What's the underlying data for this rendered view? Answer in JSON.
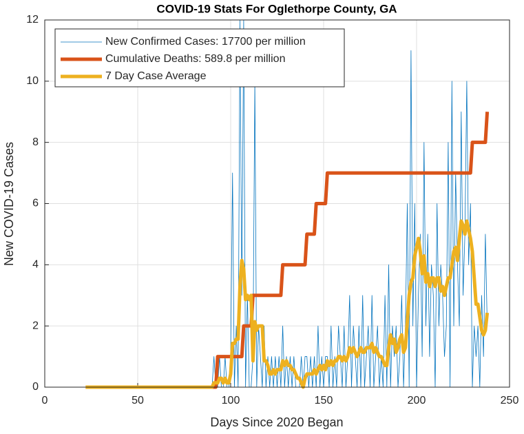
{
  "chart_data": {
    "type": "line",
    "title": "COVID-19 Stats For Oglethorpe County, GA",
    "xlabel": "Days Since 2020 Began",
    "ylabel": "New COVID-19 Cases",
    "xlim": [
      0,
      250
    ],
    "xticks": [
      0,
      50,
      100,
      150,
      200,
      250
    ],
    "ylim": [
      0,
      12
    ],
    "yticks": [
      0,
      2,
      4,
      6,
      8,
      10,
      12
    ],
    "grid": true,
    "legend": "upper left",
    "x": [
      22,
      23,
      24,
      25,
      26,
      27,
      28,
      29,
      30,
      31,
      32,
      33,
      34,
      35,
      36,
      37,
      38,
      39,
      40,
      41,
      42,
      43,
      44,
      45,
      46,
      47,
      48,
      49,
      50,
      51,
      52,
      53,
      54,
      55,
      56,
      57,
      58,
      59,
      60,
      61,
      62,
      63,
      64,
      65,
      66,
      67,
      68,
      69,
      70,
      71,
      72,
      73,
      74,
      75,
      76,
      77,
      78,
      79,
      80,
      81,
      82,
      83,
      84,
      85,
      86,
      87,
      88,
      89,
      90,
      91,
      92,
      93,
      94,
      95,
      96,
      97,
      98,
      99,
      100,
      101,
      102,
      103,
      104,
      105,
      106,
      107,
      108,
      109,
      110,
      111,
      112,
      113,
      114,
      115,
      116,
      117,
      118,
      119,
      120,
      121,
      122,
      123,
      124,
      125,
      126,
      127,
      128,
      129,
      130,
      131,
      132,
      133,
      134,
      135,
      136,
      137,
      138,
      139,
      140,
      141,
      142,
      143,
      144,
      145,
      146,
      147,
      148,
      149,
      150,
      151,
      152,
      153,
      154,
      155,
      156,
      157,
      158,
      159,
      160,
      161,
      162,
      163,
      164,
      165,
      166,
      167,
      168,
      169,
      170,
      171,
      172,
      173,
      174,
      175,
      176,
      177,
      178,
      179,
      180,
      181,
      182,
      183,
      184,
      185,
      186,
      187,
      188,
      189,
      190,
      191,
      192,
      193,
      194,
      195,
      196,
      197,
      198,
      199,
      200,
      201,
      202,
      203,
      204,
      205,
      206,
      207,
      208,
      209,
      210,
      211,
      212,
      213,
      214,
      215,
      216,
      217,
      218,
      219,
      220,
      221,
      222,
      223,
      224,
      225,
      226,
      227,
      228,
      229,
      230,
      231,
      232,
      233,
      234,
      235,
      236,
      237,
      238
    ],
    "series": [
      {
        "name": "New Confirmed Cases: 17700 per million",
        "color": "#0072BD",
        "width": 0.8,
        "values": [
          0,
          0,
          0,
          0,
          0,
          0,
          0,
          0,
          0,
          0,
          0,
          0,
          0,
          0,
          0,
          0,
          0,
          0,
          0,
          0,
          0,
          0,
          0,
          0,
          0,
          0,
          0,
          0,
          0,
          0,
          0,
          0,
          0,
          0,
          0,
          0,
          0,
          0,
          0,
          0,
          0,
          0,
          0,
          0,
          0,
          0,
          0,
          0,
          0,
          0,
          0,
          0,
          0,
          0,
          0,
          0,
          0,
          0,
          0,
          0,
          0,
          0,
          0,
          0,
          0,
          0,
          0,
          0,
          0,
          1,
          0,
          0,
          1,
          0,
          0,
          1,
          0,
          0,
          1,
          7,
          0,
          2,
          0,
          12,
          3,
          12,
          0,
          3,
          0,
          0,
          1,
          10,
          0,
          2,
          1,
          0,
          2,
          0,
          1,
          0,
          1,
          0,
          1,
          0,
          1,
          0,
          2,
          0,
          1,
          0,
          1,
          0,
          1,
          0,
          0,
          0,
          1,
          0,
          1,
          1,
          0,
          1,
          0,
          1,
          0,
          2,
          0,
          1,
          0,
          1,
          1,
          0,
          2,
          0,
          1,
          0,
          2,
          1,
          0,
          2,
          0,
          1,
          3,
          0,
          2,
          1,
          0,
          2,
          0,
          3,
          0,
          1,
          2,
          0,
          3,
          0,
          1,
          2,
          0,
          1,
          0,
          3,
          0,
          4,
          0,
          2,
          1,
          2,
          0,
          1,
          3,
          0,
          2,
          6,
          0,
          11,
          2,
          6,
          0,
          3,
          5,
          1,
          8,
          2,
          5,
          1,
          4,
          3,
          0,
          6,
          2,
          4,
          3,
          1,
          2,
          8,
          0,
          10,
          2,
          7,
          4,
          2,
          9,
          3,
          5,
          10,
          4,
          6,
          0,
          2,
          1,
          2,
          0,
          3,
          1,
          5,
          2
        ]
      },
      {
        "name": "Cumulative Deaths: 589.8 per million",
        "color": "#D95319",
        "width": 5,
        "values": [
          0,
          0,
          0,
          0,
          0,
          0,
          0,
          0,
          0,
          0,
          0,
          0,
          0,
          0,
          0,
          0,
          0,
          0,
          0,
          0,
          0,
          0,
          0,
          0,
          0,
          0,
          0,
          0,
          0,
          0,
          0,
          0,
          0,
          0,
          0,
          0,
          0,
          0,
          0,
          0,
          0,
          0,
          0,
          0,
          0,
          0,
          0,
          0,
          0,
          0,
          0,
          0,
          0,
          0,
          0,
          0,
          0,
          0,
          0,
          0,
          0,
          0,
          0,
          0,
          0,
          0,
          0,
          0,
          0,
          0,
          0,
          1,
          1,
          1,
          1,
          1,
          1,
          1,
          1,
          1,
          1,
          1,
          1,
          1,
          1,
          2,
          2,
          2,
          2,
          2,
          3,
          3,
          3,
          3,
          3,
          3,
          3,
          3,
          3,
          3,
          3,
          3,
          3,
          3,
          3,
          3,
          4,
          4,
          4,
          4,
          4,
          4,
          4,
          4,
          4,
          4,
          4,
          4,
          4,
          5,
          5,
          5,
          5,
          5,
          6,
          6,
          6,
          6,
          6,
          6,
          7,
          7,
          7,
          7,
          7,
          7,
          7,
          7,
          7,
          7,
          7,
          7,
          7,
          7,
          7,
          7,
          7,
          7,
          7,
          7,
          7,
          7,
          7,
          7,
          7,
          7,
          7,
          7,
          7,
          7,
          7,
          7,
          7,
          7,
          7,
          7,
          7,
          7,
          7,
          7,
          7,
          7,
          7,
          7,
          7,
          7,
          7,
          7,
          7,
          7,
          7,
          7,
          7,
          7,
          7,
          7,
          7,
          7,
          7,
          7,
          7,
          7,
          7,
          7,
          7,
          7,
          7,
          7,
          7,
          7,
          7,
          7,
          7,
          7,
          7,
          7,
          7,
          7,
          8,
          8,
          8,
          8,
          8,
          8,
          8,
          8,
          9
        ]
      },
      {
        "name": "7 Day Case Average",
        "color": "#EDB120",
        "width": 5,
        "values": [
          0,
          0,
          0,
          0,
          0,
          0,
          0,
          0,
          0,
          0,
          0,
          0,
          0,
          0,
          0,
          0,
          0,
          0,
          0,
          0,
          0,
          0,
          0,
          0,
          0,
          0,
          0,
          0,
          0,
          0,
          0,
          0,
          0,
          0,
          0,
          0,
          0,
          0,
          0,
          0,
          0,
          0,
          0,
          0,
          0,
          0,
          0,
          0,
          0,
          0,
          0,
          0,
          0,
          0,
          0,
          0,
          0,
          0,
          0,
          0,
          0,
          0,
          0,
          0,
          0,
          0,
          0,
          0,
          0,
          0.14,
          0.14,
          0.14,
          0.29,
          0.29,
          0.14,
          0.29,
          0.14,
          0.14,
          0.43,
          1.43,
          1.43,
          1.57,
          1.57,
          3.29,
          4.14,
          3.86,
          2.86,
          3,
          2.86,
          3,
          0.86,
          2.14,
          1.86,
          2,
          2,
          2,
          0.86,
          0.86,
          0.71,
          0.43,
          0.43,
          0.57,
          0.43,
          0.57,
          0.57,
          0.57,
          0.86,
          0.71,
          0.86,
          0.71,
          0.71,
          0.57,
          0.57,
          0.43,
          0.29,
          0.29,
          0.14,
          0,
          0.29,
          0.43,
          0.43,
          0.43,
          0.43,
          0.57,
          0.43,
          0.57,
          0.71,
          0.57,
          0.71,
          0.57,
          0.86,
          0.71,
          0.86,
          0.71,
          0.86,
          0.86,
          1,
          1,
          0.86,
          1,
          0.86,
          1,
          1.29,
          1.14,
          1.29,
          1.14,
          1,
          1.14,
          1.29,
          1.14,
          1.14,
          1.29,
          1.29,
          1.29,
          1.43,
          1.14,
          1.29,
          1.14,
          1,
          1,
          0.86,
          0.71,
          0.71,
          1.29,
          1.71,
          1.43,
          1.57,
          1.14,
          1.29,
          1.57,
          1.71,
          1.14,
          1.29,
          2.14,
          3,
          3.43,
          3.57,
          4.29,
          4.57,
          4.86,
          4.43,
          3.71,
          4.29,
          3.43,
          3.71,
          3.29,
          3.57,
          3.57,
          3.29,
          3.57,
          3.57,
          3.14,
          3.29,
          3,
          3.29,
          3.57,
          3.57,
          4,
          4.43,
          4.57,
          4.14,
          4.86,
          5.43,
          5.29,
          5,
          5.43,
          5.14,
          4.86,
          4.43,
          3.57,
          2.71,
          2.71,
          2.29,
          1.86,
          1.71,
          1.86,
          2.43
        ]
      }
    ]
  }
}
